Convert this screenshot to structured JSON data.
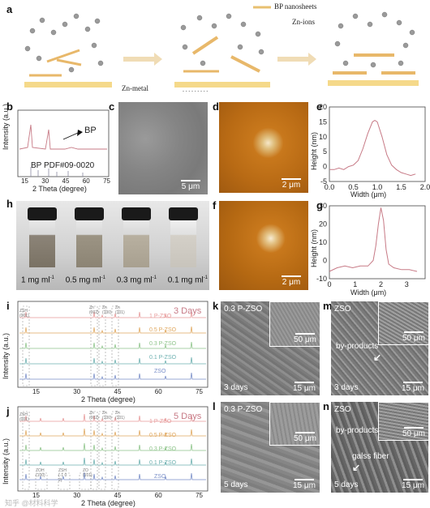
{
  "panel_letters": {
    "a": "a",
    "b": "b",
    "c": "c",
    "d": "d",
    "e": "e",
    "f": "f",
    "g": "g",
    "h": "h",
    "i": "i",
    "j": "j",
    "k": "k",
    "l": "l",
    "m": "m",
    "n": "n"
  },
  "schematic": {
    "legend_bp": "BP nanosheets",
    "legend_zn": "Zn-ions",
    "zn_metal": "Zn-metal",
    "colors": {
      "substrate": "#f5d98a",
      "ion": "#9a9a9a",
      "sheet": "#e8b86a",
      "arrow": "#f0d8a8"
    }
  },
  "panel_b": {
    "ylabel": "Intensity (a.u.)",
    "xlabel": "2 Theta (degree)",
    "ticks": [
      "15",
      "30",
      "45",
      "60",
      "75"
    ],
    "bp_label": "BP",
    "ref_label": "BP PDF#09-0020",
    "color": "#c77a86"
  },
  "panel_c": {
    "scale": "5 μm"
  },
  "panel_d": {
    "scale": "2 μm"
  },
  "panel_f": {
    "scale": "2 μm"
  },
  "panel_e": {
    "ylabel": "Height (nm)",
    "xlabel": "Width (μm)",
    "yticks": [
      "20",
      "15",
      "10",
      "5",
      "0",
      "-5"
    ],
    "xticks": [
      "0.0",
      "0.5",
      "1.0",
      "1.5",
      "2.0"
    ]
  },
  "panel_g": {
    "ylabel": "Height (nm)",
    "xlabel": "Width (μm)",
    "yticks": [
      "30",
      "20",
      "10",
      "0",
      "-10"
    ],
    "xticks": [
      "0",
      "1",
      "2",
      "3"
    ]
  },
  "chart_data": [
    {
      "type": "line",
      "id": "e",
      "ylabel": "Height (nm)",
      "xlabel": "Width (μm)",
      "xlim": [
        0,
        2
      ],
      "ylim": [
        -5,
        20
      ],
      "x": [
        0.0,
        0.1,
        0.2,
        0.3,
        0.4,
        0.5,
        0.6,
        0.7,
        0.8,
        0.9,
        0.95,
        1.0,
        1.1,
        1.2,
        1.3,
        1.4,
        1.5,
        1.6,
        1.7,
        1.8
      ],
      "y": [
        -1,
        -1,
        -0.5,
        -1,
        0,
        0.5,
        2,
        6,
        11,
        15,
        15.5,
        15,
        10,
        4,
        0.5,
        -1,
        -2,
        -2.5,
        -3,
        -2.5
      ]
    },
    {
      "type": "line",
      "id": "g",
      "ylabel": "Height (nm)",
      "xlabel": "Width (μm)",
      "xlim": [
        0,
        3.4
      ],
      "ylim": [
        -10,
        30
      ],
      "x": [
        0.0,
        0.3,
        0.6,
        0.9,
        1.2,
        1.5,
        1.7,
        1.8,
        1.9,
        2.0,
        2.1,
        2.2,
        2.3,
        2.5,
        2.8,
        3.1,
        3.4
      ],
      "y": [
        -6,
        -4,
        -3,
        -4,
        -3,
        -3,
        0,
        8,
        20,
        29,
        22,
        6,
        -2,
        -4,
        -5,
        -5,
        -6
      ]
    }
  ],
  "panel_h": {
    "labels": [
      "1 mg ml",
      "0.5 mg ml",
      "0.3 mg ml",
      "0.1 mg ml"
    ],
    "sup": "-1"
  },
  "panel_i": {
    "ylabel": "Intensity (a.u.)",
    "xlabel": "2 Theta (degree)",
    "ticks": [
      "15",
      "30",
      "45",
      "60",
      "75"
    ],
    "days": "3 Days",
    "samples": [
      "1 P-ZSO",
      "0.5 P-ZSO",
      "0.3 P-ZSO",
      "0.1 P-ZSO",
      "ZSO"
    ],
    "zsh_label": "ZSH (001)",
    "zn_labels": [
      "Zn (002)",
      "Zn (100)",
      "Zn (101)"
    ]
  },
  "panel_j": {
    "ylabel": "Intensity (a.u.)",
    "xlabel": "2 Theta (degree)",
    "ticks": [
      "15",
      "30",
      "45",
      "60",
      "75"
    ],
    "days": "5 Days",
    "samples": [
      "1 P-ZSO",
      "0.5 P-ZSO",
      "0.3 P-ZSO",
      "0.1 P-ZSO",
      "ZSO"
    ],
    "zsh_label": "ZSH (001)",
    "zn_labels": [
      "Zn (002)",
      "Zn (100)",
      "Zn (101)"
    ],
    "extra_labels": [
      "ZOH (100)",
      "ZSH (-1 0 2)",
      "ZO (101)"
    ]
  },
  "series_colors": [
    "#e79a9a",
    "#e0a860",
    "#8ec48a",
    "#6db0b0",
    "#7a8fc8"
  ],
  "panel_k": {
    "name": "0.3 P-ZSO",
    "days": "3 days",
    "scale": "15 μm",
    "inset_scale": "50 μm"
  },
  "panel_l": {
    "name": "0.3 P-ZSO",
    "days": "5 days",
    "scale": "15 μm",
    "inset_scale": "50 μm"
  },
  "panel_m": {
    "name": "ZSO",
    "days": "3 days",
    "scale": "15 μm",
    "inset_scale": "50 μm",
    "annot": "by-products"
  },
  "panel_n": {
    "name": "ZSO",
    "days": "5 days",
    "scale": "15 μm",
    "inset_scale": "50 μm",
    "annot": "by-products",
    "annot2": "galss fiber"
  },
  "watermark": "知乎 @材料科学"
}
